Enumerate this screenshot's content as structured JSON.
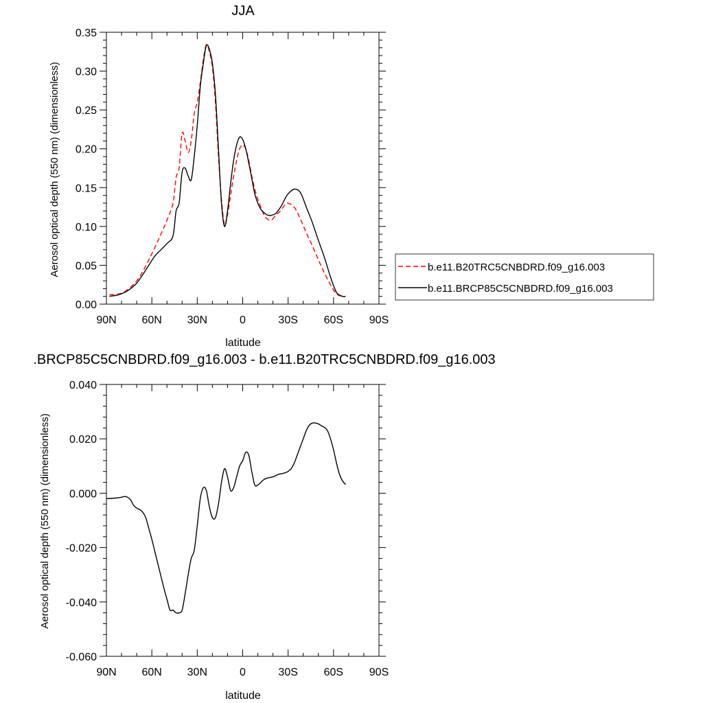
{
  "chart_data": [
    {
      "type": "line",
      "title": "JJA",
      "xlabel": "latitude",
      "ylabel": "Aerosol optical depth (550 nm) (dimensionless)",
      "xlim": [
        90,
        -90
      ],
      "ylim": [
        0,
        0.35
      ],
      "xticks": [
        {
          "value": 90,
          "label": "90N"
        },
        {
          "value": 60,
          "label": "60N"
        },
        {
          "value": 30,
          "label": "30N"
        },
        {
          "value": 0,
          "label": "0"
        },
        {
          "value": -30,
          "label": "30S"
        },
        {
          "value": -60,
          "label": "60S"
        },
        {
          "value": -90,
          "label": "90S"
        }
      ],
      "yticks": [
        {
          "value": 0.0,
          "label": "0.00"
        },
        {
          "value": 0.05,
          "label": "0.05"
        },
        {
          "value": 0.1,
          "label": "0.10"
        },
        {
          "value": 0.15,
          "label": "0.15"
        },
        {
          "value": 0.2,
          "label": "0.20"
        },
        {
          "value": 0.25,
          "label": "0.25"
        },
        {
          "value": 0.3,
          "label": "0.30"
        },
        {
          "value": 0.35,
          "label": "0.35"
        }
      ],
      "legend_position": "right",
      "series": [
        {
          "name": "b.e11.B20TRC5CNBDRD.f09_g16.003",
          "color": "#ff0000",
          "dash": "dashed",
          "x": [
            88,
            82,
            78,
            74,
            70,
            66,
            62,
            58,
            54,
            50,
            46,
            44,
            42,
            40,
            38,
            36,
            34,
            32,
            30,
            28,
            26,
            24,
            22,
            20,
            18,
            16,
            14,
            12,
            10,
            8,
            6,
            4,
            2,
            0,
            -2,
            -4,
            -6,
            -8,
            -10,
            -12,
            -14,
            -16,
            -18,
            -20,
            -22,
            -24,
            -26,
            -28,
            -30,
            -34,
            -38,
            -42,
            -46,
            -50,
            -54,
            -58,
            -62,
            -66,
            -68
          ],
          "y": [
            0.012,
            0.013,
            0.016,
            0.022,
            0.03,
            0.042,
            0.057,
            0.073,
            0.09,
            0.108,
            0.13,
            0.163,
            0.175,
            0.22,
            0.21,
            0.195,
            0.21,
            0.245,
            0.26,
            0.285,
            0.315,
            0.334,
            0.325,
            0.305,
            0.26,
            0.19,
            0.135,
            0.102,
            0.115,
            0.14,
            0.165,
            0.185,
            0.2,
            0.205,
            0.2,
            0.185,
            0.165,
            0.148,
            0.135,
            0.125,
            0.115,
            0.11,
            0.108,
            0.11,
            0.115,
            0.118,
            0.123,
            0.128,
            0.13,
            0.125,
            0.11,
            0.092,
            0.075,
            0.057,
            0.04,
            0.025,
            0.013,
            0.01,
            0.01
          ]
        },
        {
          "name": "b.e11.BRCP85C5CNBDRD.f09_g16.003",
          "color": "#000000",
          "dash": "solid",
          "x": [
            88,
            82,
            78,
            74,
            70,
            66,
            62,
            58,
            54,
            50,
            46,
            44,
            42,
            40,
            38,
            36,
            34,
            32,
            30,
            28,
            26,
            24,
            22,
            20,
            18,
            16,
            14,
            12,
            10,
            8,
            6,
            4,
            2,
            0,
            -2,
            -4,
            -6,
            -8,
            -10,
            -12,
            -14,
            -16,
            -18,
            -20,
            -22,
            -24,
            -26,
            -28,
            -30,
            -34,
            -38,
            -42,
            -46,
            -50,
            -54,
            -58,
            -62,
            -66,
            -68
          ],
          "y": [
            0.01,
            0.012,
            0.015,
            0.02,
            0.027,
            0.038,
            0.05,
            0.062,
            0.07,
            0.078,
            0.088,
            0.12,
            0.13,
            0.17,
            0.175,
            0.165,
            0.16,
            0.19,
            0.23,
            0.28,
            0.31,
            0.333,
            0.328,
            0.31,
            0.27,
            0.2,
            0.13,
            0.1,
            0.12,
            0.155,
            0.185,
            0.205,
            0.215,
            0.212,
            0.2,
            0.182,
            0.162,
            0.142,
            0.13,
            0.122,
            0.118,
            0.115,
            0.114,
            0.115,
            0.117,
            0.122,
            0.128,
            0.136,
            0.142,
            0.148,
            0.144,
            0.125,
            0.105,
            0.082,
            0.06,
            0.035,
            0.015,
            0.01,
            0.01
          ]
        }
      ]
    },
    {
      "type": "line",
      "title": ".BRCP85C5CNBDRD.f09_g16.003 - b.e11.B20TRC5CNBDRD.f09_g16.003",
      "xlabel": "latitude",
      "ylabel": "Aerosol optical depth (550 nm) (dimensionless)",
      "xlim": [
        90,
        -90
      ],
      "ylim": [
        -0.06,
        0.04
      ],
      "xticks": [
        {
          "value": 90,
          "label": "90N"
        },
        {
          "value": 60,
          "label": "60N"
        },
        {
          "value": 30,
          "label": "30N"
        },
        {
          "value": 0,
          "label": "0"
        },
        {
          "value": -30,
          "label": "30S"
        },
        {
          "value": -60,
          "label": "60S"
        },
        {
          "value": -90,
          "label": "90S"
        }
      ],
      "yticks": [
        {
          "value": -0.06,
          "label": "-0.060"
        },
        {
          "value": -0.04,
          "label": "-0.040"
        },
        {
          "value": -0.02,
          "label": "-0.020"
        },
        {
          "value": 0.0,
          "label": "0.000"
        },
        {
          "value": 0.02,
          "label": "0.020"
        },
        {
          "value": 0.04,
          "label": "0.040"
        }
      ],
      "series": [
        {
          "color": "#000000",
          "dash": "solid",
          "x": [
            90,
            84,
            80,
            78,
            76,
            74,
            72,
            70,
            68,
            66,
            64,
            62,
            60,
            56,
            52,
            50,
            48,
            46,
            44,
            42,
            40,
            38,
            36,
            34,
            32,
            30,
            28,
            26,
            24,
            22,
            20,
            18,
            16,
            14,
            12,
            10,
            8,
            6,
            4,
            2,
            0,
            -2,
            -4,
            -6,
            -8,
            -10,
            -12,
            -14,
            -16,
            -18,
            -20,
            -22,
            -24,
            -26,
            -28,
            -30,
            -32,
            -34,
            -36,
            -38,
            -40,
            -42,
            -44,
            -46,
            -48,
            -50,
            -52,
            -54,
            -56,
            -58,
            -60,
            -62,
            -64,
            -66,
            -68
          ],
          "y": [
            -0.002,
            -0.0018,
            -0.0015,
            -0.0012,
            -0.0015,
            -0.0025,
            -0.0045,
            -0.0055,
            -0.006,
            -0.007,
            -0.009,
            -0.013,
            -0.017,
            -0.026,
            -0.035,
            -0.039,
            -0.043,
            -0.043,
            -0.044,
            -0.044,
            -0.043,
            -0.037,
            -0.03,
            -0.024,
            -0.021,
            -0.012,
            -0.002,
            0.002,
            0.001,
            -0.005,
            -0.009,
            -0.009,
            -0.004,
            0.004,
            0.009,
            0.006,
            0.001,
            0.002,
            0.006,
            0.01,
            0.012,
            0.015,
            0.014,
            0.008,
            0.003,
            0.003,
            0.004,
            0.005,
            0.0055,
            0.0058,
            0.006,
            0.0065,
            0.007,
            0.0072,
            0.0075,
            0.008,
            0.009,
            0.011,
            0.014,
            0.017,
            0.02,
            0.023,
            0.025,
            0.0258,
            0.0258,
            0.0255,
            0.0248,
            0.0242,
            0.023,
            0.02,
            0.016,
            0.011,
            0.0068,
            0.0045,
            0.0032
          ]
        }
      ]
    }
  ]
}
